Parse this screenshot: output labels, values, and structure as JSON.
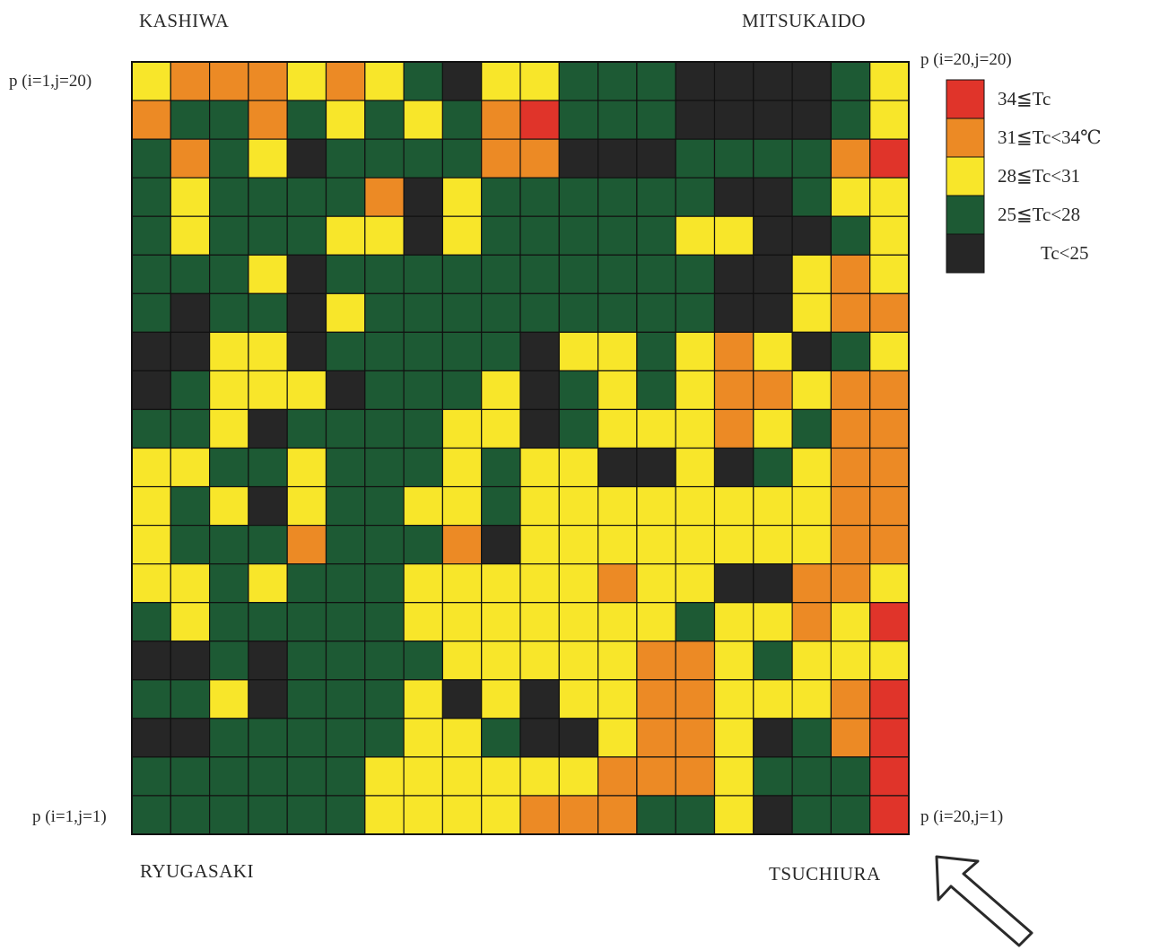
{
  "chart_data": {
    "type": "heatmap",
    "grid_size": [
      20,
      20
    ],
    "row_order": "top row is j=20, bottom row is j=1; columns left to right are i=1..20",
    "corner_labels": {
      "top_left": "p (i=1,j=20)",
      "top_right": "p (i=20,j=20)",
      "bottom_left": "p (i=1,j=1)",
      "bottom_right": "p (i=20,j=1)"
    },
    "cities": {
      "top_left": "KASHIWA",
      "top_right": "MITSUKAIDO",
      "bottom_left": "RYUGASAKI",
      "bottom_right": "TSUCHIURA"
    },
    "legend": [
      {
        "key": "R",
        "label": "34≦Tc",
        "color": "#e0342a"
      },
      {
        "key": "O",
        "label": "31≦Tc<34℃",
        "color": "#ec8a25"
      },
      {
        "key": "Y",
        "label": "28≦Tc<31",
        "color": "#f8e62a"
      },
      {
        "key": "G",
        "label": "25≦Tc<28",
        "color": "#1d5a34"
      },
      {
        "key": "B",
        "label": "Tc<25",
        "color": "#262626"
      }
    ],
    "cells": [
      "YOOOYOYGBYYGGGBBBBGY",
      "OGGOGYGYGORGGGBBBBGY",
      "GOGYBGGGGOOBBBGGGGOR",
      "GYGGGGOBYGGGGGGBBGYY",
      "GYGGGYYBYGGGGGYYBBGY",
      "GGGYBGGGGGGGGGGBBYOY",
      "GBGGBYGGGGGGGGGBBYOO",
      "BBYYBGGGGGBYYGYOYBGY",
      "BGYYYBGGGYBGYGYOOYOO",
      "GGYBGGGGYYBGYYYOYGOO",
      "YYGGYGGGYGYYBBYBGYOO",
      "YGYBYGGYYGYYYYYYYYOO",
      "YGGGOGGGOBYYYYYYYYOO",
      "YYGYGGGYYYYYOYYBBOOY",
      "GYGGGGGYYYYYYYGYYOYR",
      "BBGBGGGGYYYYYOOYGYYY",
      "GGYBGGGYBYBYYOOYYYOR",
      "BBGGGGGYYGBBYOOYBGOR",
      "GGGGGGYYYYYYOOOYGGGR",
      "GGGGGGYYYYOOOGGYBGGR"
    ]
  }
}
